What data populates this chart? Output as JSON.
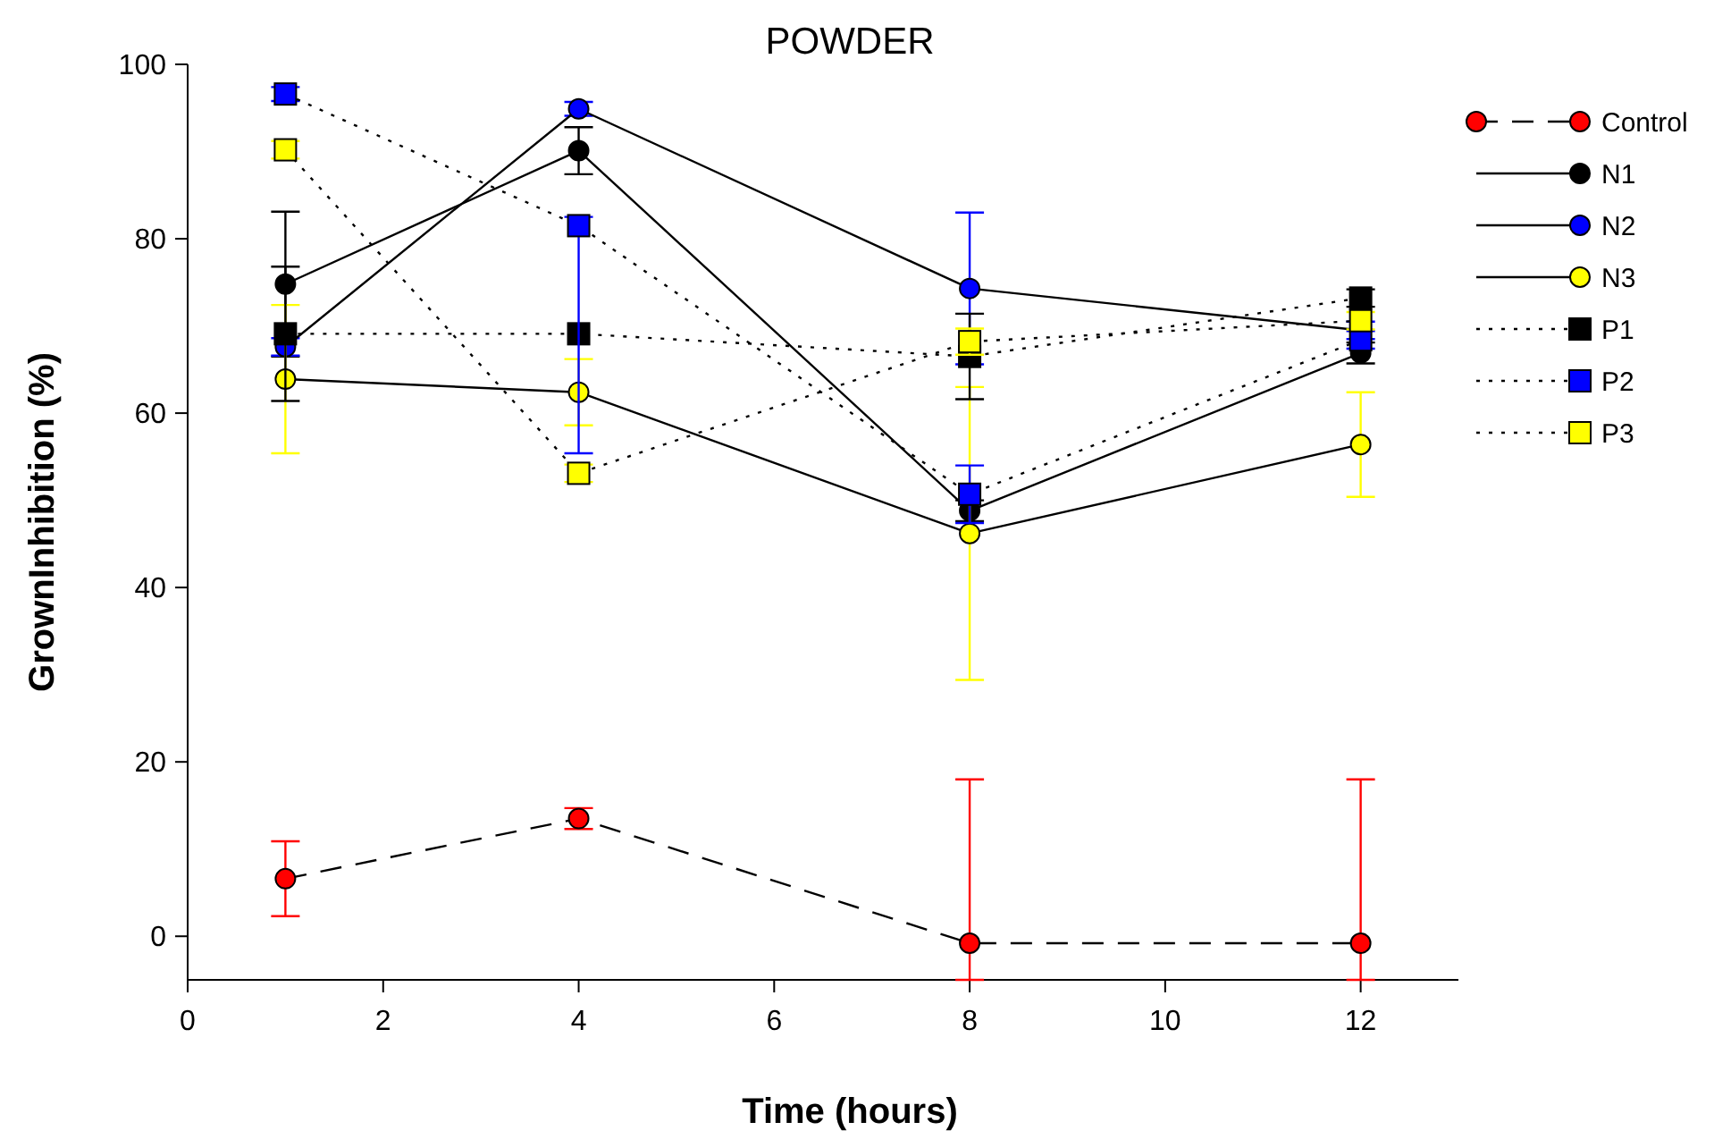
{
  "chart_data": {
    "type": "line",
    "title": "POWDER",
    "xlabel": "Time (hours)",
    "ylabel": "GrownInhibition (%)",
    "x": [
      1,
      4,
      8,
      12
    ],
    "xlim": [
      0,
      13
    ],
    "xticks": [
      0,
      2,
      4,
      6,
      8,
      10,
      12
    ],
    "ylim": [
      -5,
      100
    ],
    "yticks": [
      0,
      20,
      40,
      60,
      80,
      100
    ],
    "grid": false,
    "legend": "right",
    "series": [
      {
        "name": "Control",
        "color": "#ff0000",
        "marker": "circle",
        "line_style": "dashed",
        "values": [
          6.6,
          13.5,
          -0.8,
          -0.8
        ],
        "errors": [
          4.3,
          1.2,
          [
            -5,
            18
          ],
          [
            -5,
            18
          ]
        ]
      },
      {
        "name": "N1",
        "color": "#000000",
        "marker": "circle",
        "line_style": "solid",
        "values": [
          74.8,
          90.1,
          48.8,
          66.9
        ],
        "errors": [
          8.3,
          2.7,
          1.2,
          1.2
        ]
      },
      {
        "name": "N2",
        "color": "#0000ff",
        "marker": "circle",
        "line_style": "solid",
        "values": [
          67.6,
          94.9,
          74.3,
          69.5
        ],
        "errors": [
          1,
          0.8,
          8.7,
          1
        ]
      },
      {
        "name": "N3",
        "color": "#ffff00",
        "marker": "circle",
        "line_style": "solid",
        "values": [
          63.9,
          62.4,
          46.2,
          56.4
        ],
        "errors": [
          8.5,
          3.8,
          16.8,
          6
        ]
      },
      {
        "name": "P1",
        "color": "#000000",
        "marker": "square",
        "line_style": "dotted",
        "values": [
          69.1,
          69.1,
          66.5,
          73.2
        ],
        "errors": [
          7.7,
          null,
          4.9,
          1
        ]
      },
      {
        "name": "P2",
        "color": "#0000ff",
        "marker": "square",
        "line_style": "dotted",
        "values": [
          96.6,
          81.5,
          50.7,
          68.4
        ],
        "errors": [
          0.8,
          [
            55.4,
            82.5
          ],
          3.3,
          1
        ]
      },
      {
        "name": "P3",
        "color": "#ffff00",
        "marker": "square",
        "line_style": "dotted",
        "values": [
          90.2,
          53.1,
          68.2,
          70.6
        ],
        "errors": [
          1,
          1,
          1.5,
          1
        ]
      }
    ]
  }
}
